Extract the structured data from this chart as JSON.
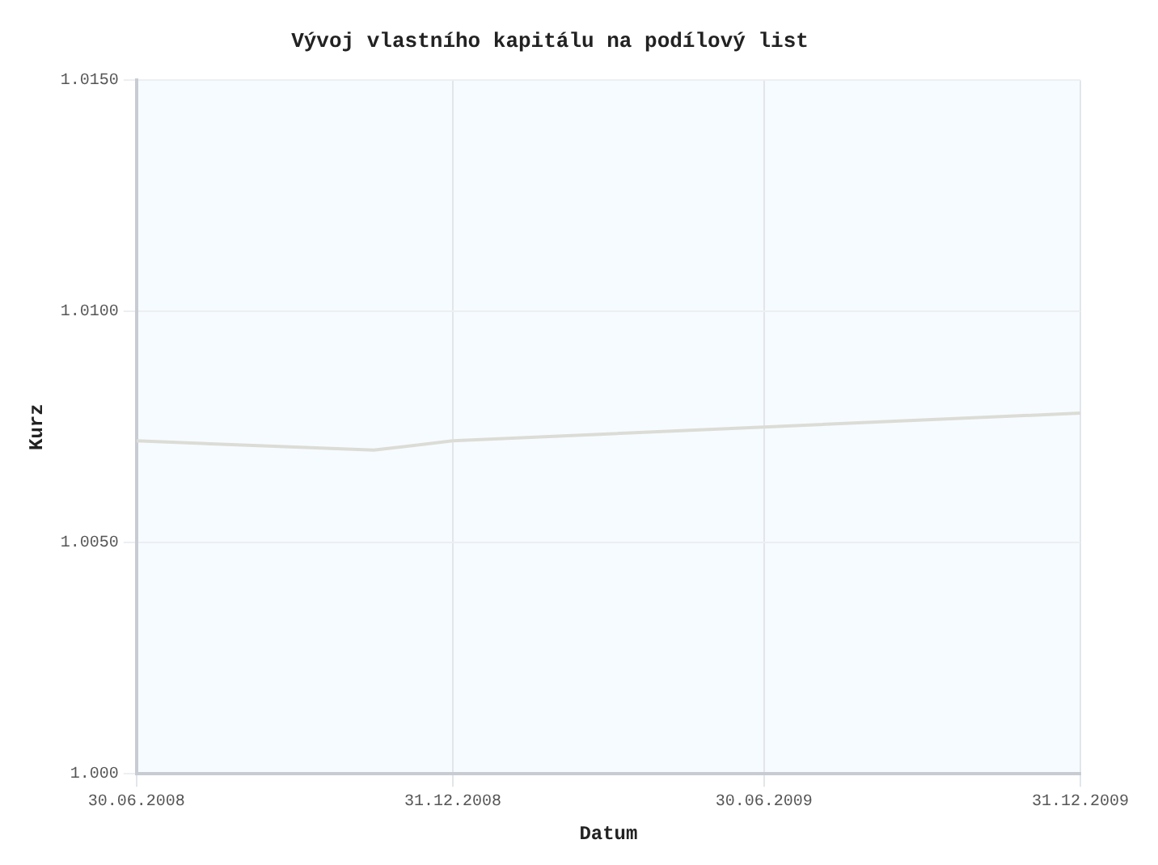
{
  "chart_data": {
    "type": "line",
    "title": "Vývoj vlastního kapitálu na podílový list",
    "xlabel": "Datum",
    "ylabel": "Kurz",
    "x": [
      "2008-06-30",
      "2008-11-15",
      "2008-12-31",
      "2009-06-30",
      "2009-12-31"
    ],
    "series": [
      {
        "color": "#dcdcd6",
        "values": [
          1.0072,
          1.007,
          1.0072,
          1.0075,
          1.0078
        ]
      }
    ],
    "xlim": [
      "2008-06-30",
      "2009-12-31"
    ],
    "xticks": [
      {
        "value": "2008-06-30",
        "label": "30.06.2008"
      },
      {
        "value": "2008-12-31",
        "label": "31.12.2008"
      },
      {
        "value": "2009-06-30",
        "label": "30.06.2009"
      },
      {
        "value": "2009-12-31",
        "label": "31.12.2009"
      }
    ],
    "ylim": [
      1.0,
      1.015
    ],
    "yticks": [
      {
        "value": 1.0,
        "label": "1.000"
      },
      {
        "value": 1.005,
        "label": "1.0050"
      },
      {
        "value": 1.01,
        "label": "1.0100"
      },
      {
        "value": 1.015,
        "label": "1.0150"
      }
    ],
    "grid": true,
    "legend": false,
    "marker": "none",
    "line_style": "solid"
  }
}
